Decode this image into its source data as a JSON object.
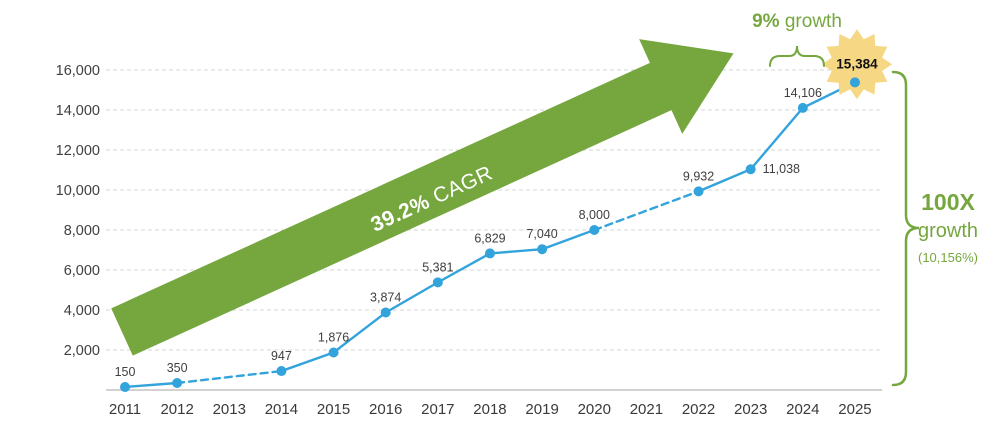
{
  "chart_data": {
    "type": "line",
    "title": "",
    "x_labels": [
      "2011",
      "2012",
      "2013",
      "2014",
      "2015",
      "2016",
      "2017",
      "2018",
      "2019",
      "2020",
      "2021",
      "2022",
      "2023",
      "2024",
      "2025"
    ],
    "y_ticks": [
      2000,
      4000,
      6000,
      8000,
      10000,
      12000,
      14000,
      16000
    ],
    "y_tick_labels": [
      "2,000",
      "4,000",
      "6,000",
      "8,000",
      "10,000",
      "12,000",
      "14,000",
      "16,000"
    ],
    "ylim": [
      0,
      16000
    ],
    "grid": true,
    "legend": "none",
    "points": [
      {
        "year": "2011",
        "value": 150,
        "label": "150"
      },
      {
        "year": "2012",
        "value": 350,
        "label": "350"
      },
      {
        "year": "2014",
        "value": 947,
        "label": "947"
      },
      {
        "year": "2015",
        "value": 1876,
        "label": "1,876"
      },
      {
        "year": "2016",
        "value": 3874,
        "label": "3,874"
      },
      {
        "year": "2017",
        "value": 5381,
        "label": "5,381"
      },
      {
        "year": "2018",
        "value": 6829,
        "label": "6,829"
      },
      {
        "year": "2019",
        "value": 7040,
        "label": "7,040"
      },
      {
        "year": "2020",
        "value": 8000,
        "label": "8,000"
      },
      {
        "year": "2022",
        "value": 9932,
        "label": "9,932"
      },
      {
        "year": "2023",
        "value": 11038,
        "label": "11,038",
        "label_pos": "right"
      },
      {
        "year": "2024",
        "value": 14106,
        "label": "14,106"
      },
      {
        "year": "2025",
        "value": 15384,
        "label": "15,384",
        "label_pos": "star"
      }
    ],
    "dashed_segments": [
      [
        "2012",
        "2014"
      ],
      [
        "2020",
        "2022"
      ]
    ]
  },
  "annotations": {
    "cagr_value": "39.2%",
    "cagr_label": " CAGR",
    "growth_small_value": "9%",
    "growth_small_label": " growth",
    "growth_big_value": "100X",
    "growth_big_label": "growth",
    "growth_big_pct": "(10,156%)"
  },
  "colors": {
    "green": "#76A73F",
    "blue": "#33A3DC",
    "star_fill": "#F6D783",
    "grid": "#D6D6D6",
    "axis": "#C4C4C4",
    "label": "#404040"
  }
}
